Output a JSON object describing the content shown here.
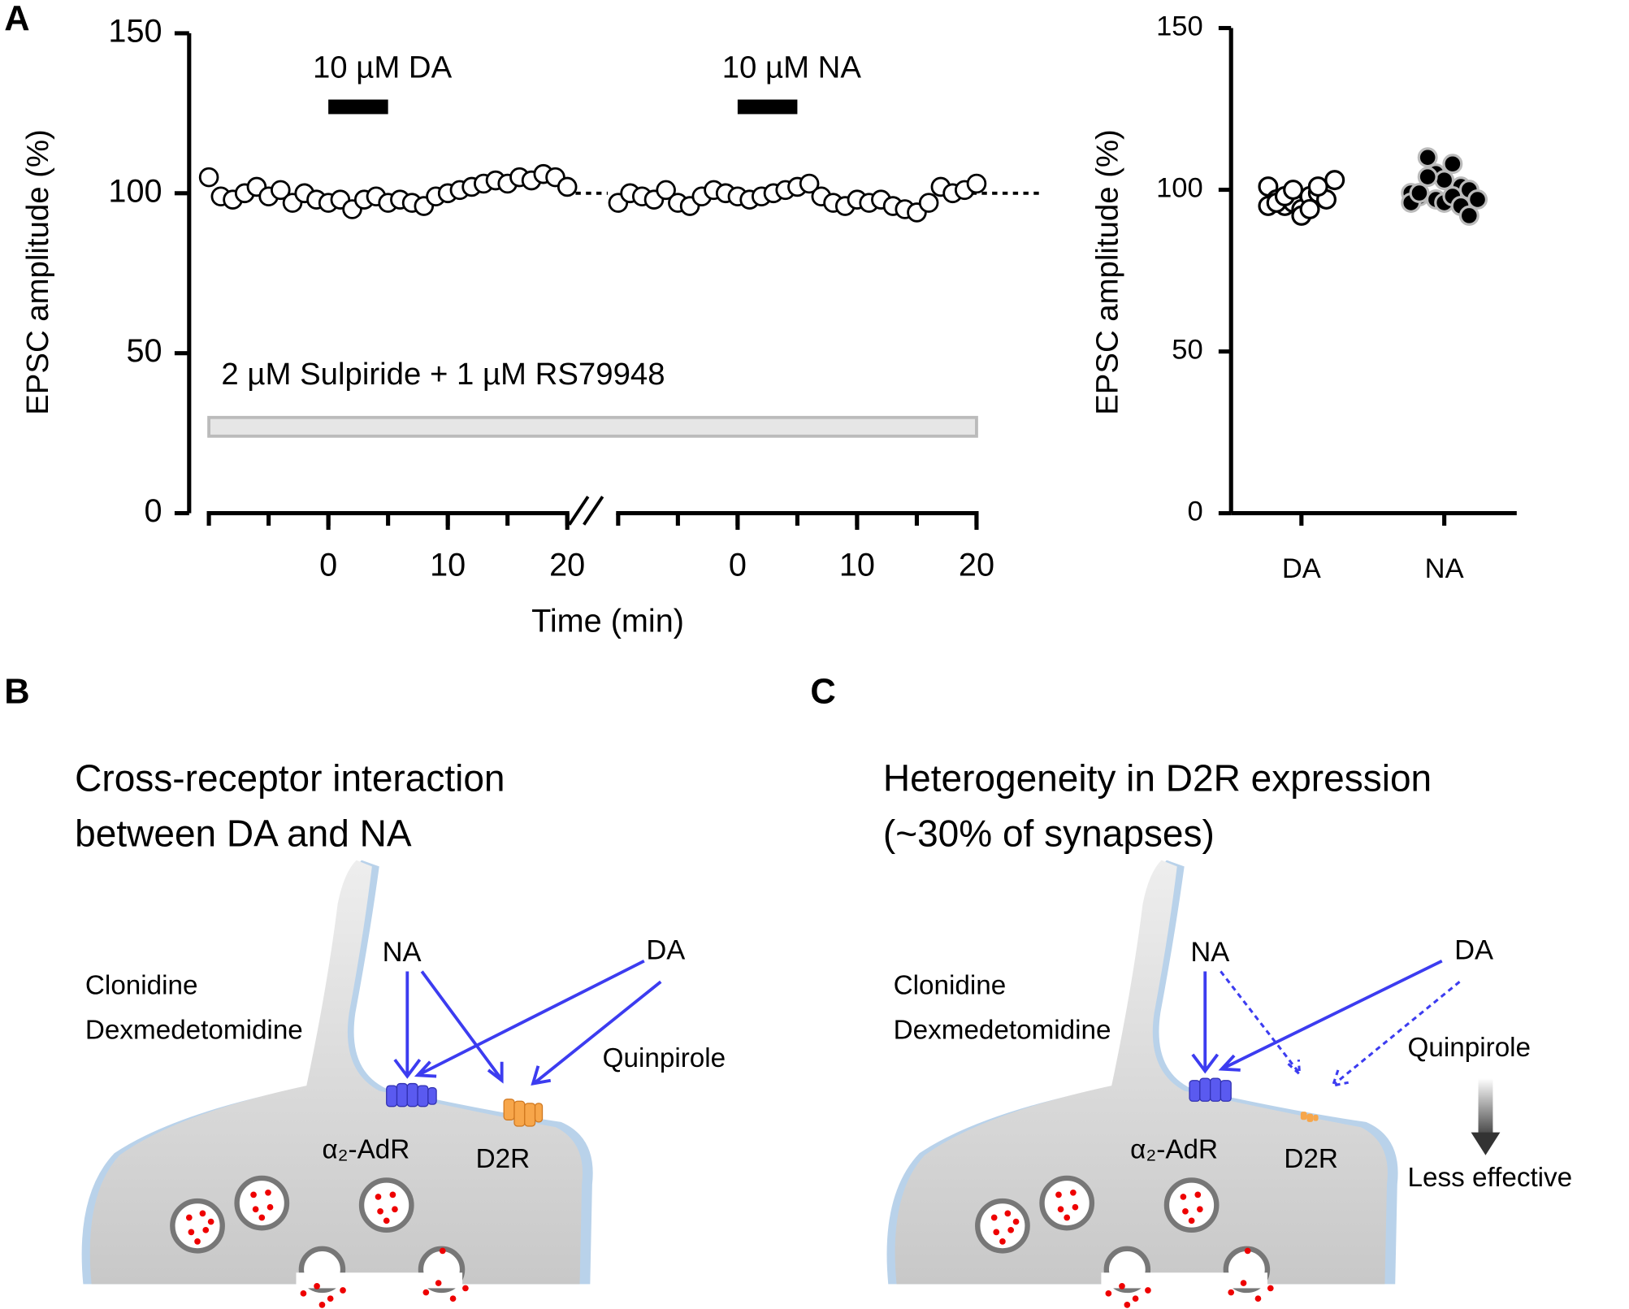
{
  "panel_labels": [
    "A",
    "B",
    "C"
  ],
  "chart_data": [
    {
      "type": "scatter",
      "y_label": "EPSC amplitude (%)",
      "x_label": "Time (min)",
      "ylim": [
        0,
        150
      ],
      "yticks": [
        0,
        50,
        100,
        150
      ],
      "baseline": 100,
      "segments": [
        {
          "xlim": [
            -10,
            20
          ],
          "xticks": [
            0,
            10,
            20
          ],
          "x": [
            -10,
            -9,
            -8,
            -7,
            -6,
            -5,
            -4,
            -3,
            -2,
            -1,
            0,
            1,
            2,
            3,
            4,
            5,
            6,
            7,
            8,
            9,
            10,
            11,
            12,
            13,
            14,
            15,
            16,
            17,
            18,
            19,
            20
          ],
          "values": [
            105,
            99,
            98,
            100,
            102,
            99,
            101,
            97,
            100,
            98,
            97,
            98,
            95,
            98,
            99,
            97,
            98,
            97,
            96,
            99,
            100,
            101,
            102,
            103,
            104,
            103,
            105,
            104,
            106,
            105,
            102
          ],
          "drug": {
            "label": "10 µM DA",
            "start": 0,
            "end": 5,
            "level": 127
          }
        },
        {
          "xlim": [
            -10,
            20
          ],
          "xticks": [
            0,
            10,
            20
          ],
          "x": [
            -10,
            -9,
            -8,
            -7,
            -6,
            -5,
            -4,
            -3,
            -2,
            -1,
            0,
            1,
            2,
            3,
            4,
            5,
            6,
            7,
            8,
            9,
            10,
            11,
            12,
            13,
            14,
            15,
            16,
            17,
            18,
            19,
            20
          ],
          "values": [
            97,
            100,
            99,
            98,
            101,
            97,
            96,
            99,
            101,
            100,
            99,
            98,
            99,
            100,
            101,
            102,
            103,
            99,
            97,
            96,
            98,
            97,
            98,
            96,
            95,
            94,
            97,
            102,
            100,
            101,
            103
          ],
          "drug": {
            "label": "10 µM NA",
            "start": 0,
            "end": 5,
            "level": 127
          }
        }
      ],
      "annotation": {
        "label": "2 µM Sulpiride + 1 µM RS79948",
        "level": 27
      }
    },
    {
      "type": "dot",
      "y_label": "EPSC amplitude (%)",
      "categories": [
        "DA",
        "NA"
      ],
      "values": [
        [
          101,
          97,
          95,
          96,
          94,
          98,
          99,
          97,
          103,
          95,
          96,
          98,
          100,
          92,
          94,
          101
        ],
        [
          99,
          98,
          110,
          105,
          103,
          108,
          101,
          100,
          97,
          96,
          99,
          104,
          97,
          96,
          98,
          95,
          92
        ]
      ],
      "colors": [
        "#ffffff",
        "#000000"
      ],
      "ylim": [
        0,
        150
      ],
      "yticks": [
        0,
        50,
        100,
        150
      ]
    }
  ],
  "panels": {
    "B": {
      "title": [
        "Cross-receptor interaction",
        "between DA and NA"
      ],
      "drugs": [
        "Clonidine",
        "Dexmedetomidine"
      ],
      "NA": "NA",
      "DA": "DA",
      "agonist": "Quinpirole",
      "alpha": "α₂-AdR",
      "d2r": "D2R"
    },
    "C": {
      "title": [
        "Heterogeneity in D2R expression",
        "(~30% of synapses)"
      ],
      "drugs": [
        "Clonidine",
        "Dexmedetomidine"
      ],
      "NA": "NA",
      "DA": "DA",
      "agonist": "Quinpirole",
      "alpha": "α₂-AdR",
      "d2r": "D2R",
      "note": "Less effective"
    }
  }
}
